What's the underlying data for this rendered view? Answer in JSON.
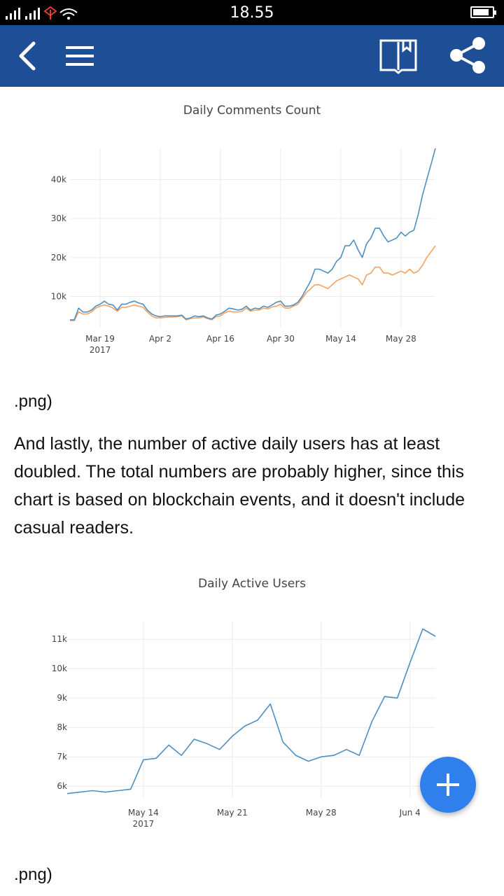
{
  "status_bar": {
    "time": "18.55",
    "battery_level": 0.85
  },
  "toolbar": {
    "background": "#1e4f96",
    "icons": [
      "back-arrow-icon",
      "menu-icon",
      "bookmark-book-icon",
      "share-icon"
    ]
  },
  "charts": [
    {
      "title": "Daily Comments Count",
      "type": "line",
      "y_ticks": [
        "10k",
        "20k",
        "30k",
        "40k"
      ],
      "x_ticks": [
        {
          "label": "Mar 19",
          "sub": "2017"
        },
        {
          "label": "Apr 2",
          "sub": ""
        },
        {
          "label": "Apr 16",
          "sub": ""
        },
        {
          "label": "Apr 30",
          "sub": ""
        },
        {
          "label": "May 14",
          "sub": ""
        },
        {
          "label": "May 28",
          "sub": ""
        }
      ]
    },
    {
      "title": "Daily Active Users",
      "type": "line",
      "y_ticks": [
        "6k",
        "7k",
        "8k",
        "9k",
        "10k",
        "11k"
      ],
      "x_ticks": [
        {
          "label": "May 14",
          "sub": "2017"
        },
        {
          "label": "May 21",
          "sub": ""
        },
        {
          "label": "May 28",
          "sub": ""
        },
        {
          "label": "Jun 4",
          "sub": ""
        }
      ]
    }
  ],
  "chart_data": [
    {
      "type": "line",
      "title": "Daily Comments Count",
      "x_start": "2017-03-12",
      "ylim": [
        2000,
        48000
      ],
      "series": [
        {
          "color": "#4f8fc0",
          "values": [
            4000,
            4000,
            7000,
            6000,
            6000,
            6500,
            7500,
            8000,
            8800,
            8000,
            7800,
            6500,
            8000,
            8000,
            8500,
            8800,
            8300,
            8000,
            6500,
            5500,
            5000,
            4800,
            5000,
            5000,
            5000,
            5000,
            5200,
            4200,
            4500,
            5000,
            4800,
            5000,
            4500,
            4200,
            5200,
            5500,
            6200,
            7000,
            6800,
            6500,
            6700,
            7500,
            6500,
            7000,
            6800,
            7500,
            7200,
            7800,
            8500,
            8800,
            7500,
            7500,
            7800,
            8500,
            10000,
            12000,
            14000,
            17000,
            17000,
            16500,
            16000,
            17000,
            19000,
            20000,
            23000,
            23000,
            24500,
            22000,
            20000,
            23500,
            25000,
            27500,
            27500,
            25500,
            24000,
            24500,
            25000,
            26500,
            25500,
            26500,
            27000,
            31000,
            36000,
            40000,
            44000,
            48000
          ]
        },
        {
          "color": "#f5a25d",
          "values": [
            3800,
            3800,
            6000,
            5500,
            5500,
            6000,
            7000,
            7500,
            7800,
            7500,
            7000,
            6200,
            7200,
            7200,
            7500,
            7800,
            7500,
            7200,
            6000,
            5000,
            4500,
            4500,
            4600,
            4700,
            4700,
            4800,
            5000,
            4000,
            4300,
            4500,
            4500,
            4700,
            4300,
            4000,
            4800,
            5000,
            5800,
            6200,
            6000,
            6000,
            6200,
            7000,
            6200,
            6500,
            6500,
            7000,
            6800,
            7300,
            7500,
            8000,
            7000,
            7000,
            7500,
            8000,
            9500,
            11000,
            12000,
            13000,
            13000,
            12500,
            12000,
            13000,
            14000,
            14500,
            15000,
            15500,
            15000,
            14500,
            13000,
            15500,
            16000,
            17500,
            17500,
            16000,
            16000,
            15500,
            16000,
            16500,
            16000,
            17000,
            16000,
            16500,
            18000,
            20000,
            21500,
            23000
          ]
        }
      ]
    },
    {
      "type": "line",
      "title": "Daily Active Users",
      "x_start": "2017-05-08",
      "ylim": [
        5600,
        11600
      ],
      "series": [
        {
          "color": "#4f8fc0",
          "values": [
            5750,
            5800,
            5850,
            5800,
            5850,
            5900,
            6900,
            6950,
            7400,
            7050,
            7600,
            7450,
            7250,
            7700,
            8050,
            8250,
            8800,
            7500,
            7050,
            6850,
            7000,
            7050,
            7250,
            7050,
            8200,
            9050,
            9000,
            10200,
            11350,
            11100
          ]
        }
      ]
    }
  ],
  "captions": [
    ".png)",
    ".png)"
  ],
  "paragraph": "And lastly, the number of active daily users has at least doubled. The total numbers are probably higher, since this chart is based on blockchain events, and it doesn't include casual readers.",
  "fab": {
    "icon": "plus-icon",
    "color": "#2f80ed"
  }
}
